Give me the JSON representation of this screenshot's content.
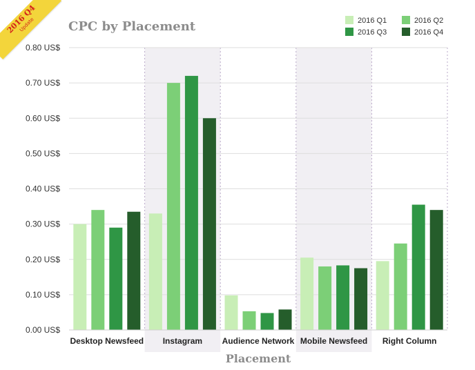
{
  "badge": {
    "line1": "2016 Q4",
    "line2": "Update"
  },
  "colors": {
    "Q1": "#c8eeb6",
    "Q2": "#7ccf77",
    "Q3": "#2f9645",
    "Q4": "#255d2b",
    "band": "#f1eff3",
    "grid": "#dedede",
    "axis_text": "#333333",
    "title": "#8c8c8c"
  },
  "chart_data": {
    "type": "bar",
    "title": "CPC by Placement",
    "xlabel": "Placement",
    "ylabel": "",
    "ylim": [
      0,
      0.8
    ],
    "yticks": [
      0,
      0.1,
      0.2,
      0.3,
      0.4,
      0.5,
      0.6,
      0.7,
      0.8
    ],
    "ytick_labels": [
      "0.00 US$",
      "0.10 US$",
      "0.20 US$",
      "0.30 US$",
      "0.40 US$",
      "0.50 US$",
      "0.60 US$",
      "0.70 US$",
      "0.80 US$"
    ],
    "categories": [
      "Desktop Newsfeed",
      "Instagram",
      "Audience Network",
      "Mobile Newsfeed",
      "Right Column"
    ],
    "shaded_categories": [
      "Instagram",
      "Mobile Newsfeed"
    ],
    "legend_position": "top-right",
    "grid": true,
    "series": [
      {
        "name": "2016 Q1",
        "values": [
          0.3,
          0.33,
          0.098,
          0.205,
          0.195
        ]
      },
      {
        "name": "2016 Q2",
        "values": [
          0.34,
          0.7,
          0.053,
          0.18,
          0.245
        ]
      },
      {
        "name": "2016 Q3",
        "values": [
          0.29,
          0.72,
          0.048,
          0.183,
          0.355
        ]
      },
      {
        "name": "2016 Q4",
        "values": [
          0.335,
          0.6,
          0.058,
          0.175,
          0.34
        ]
      }
    ]
  }
}
